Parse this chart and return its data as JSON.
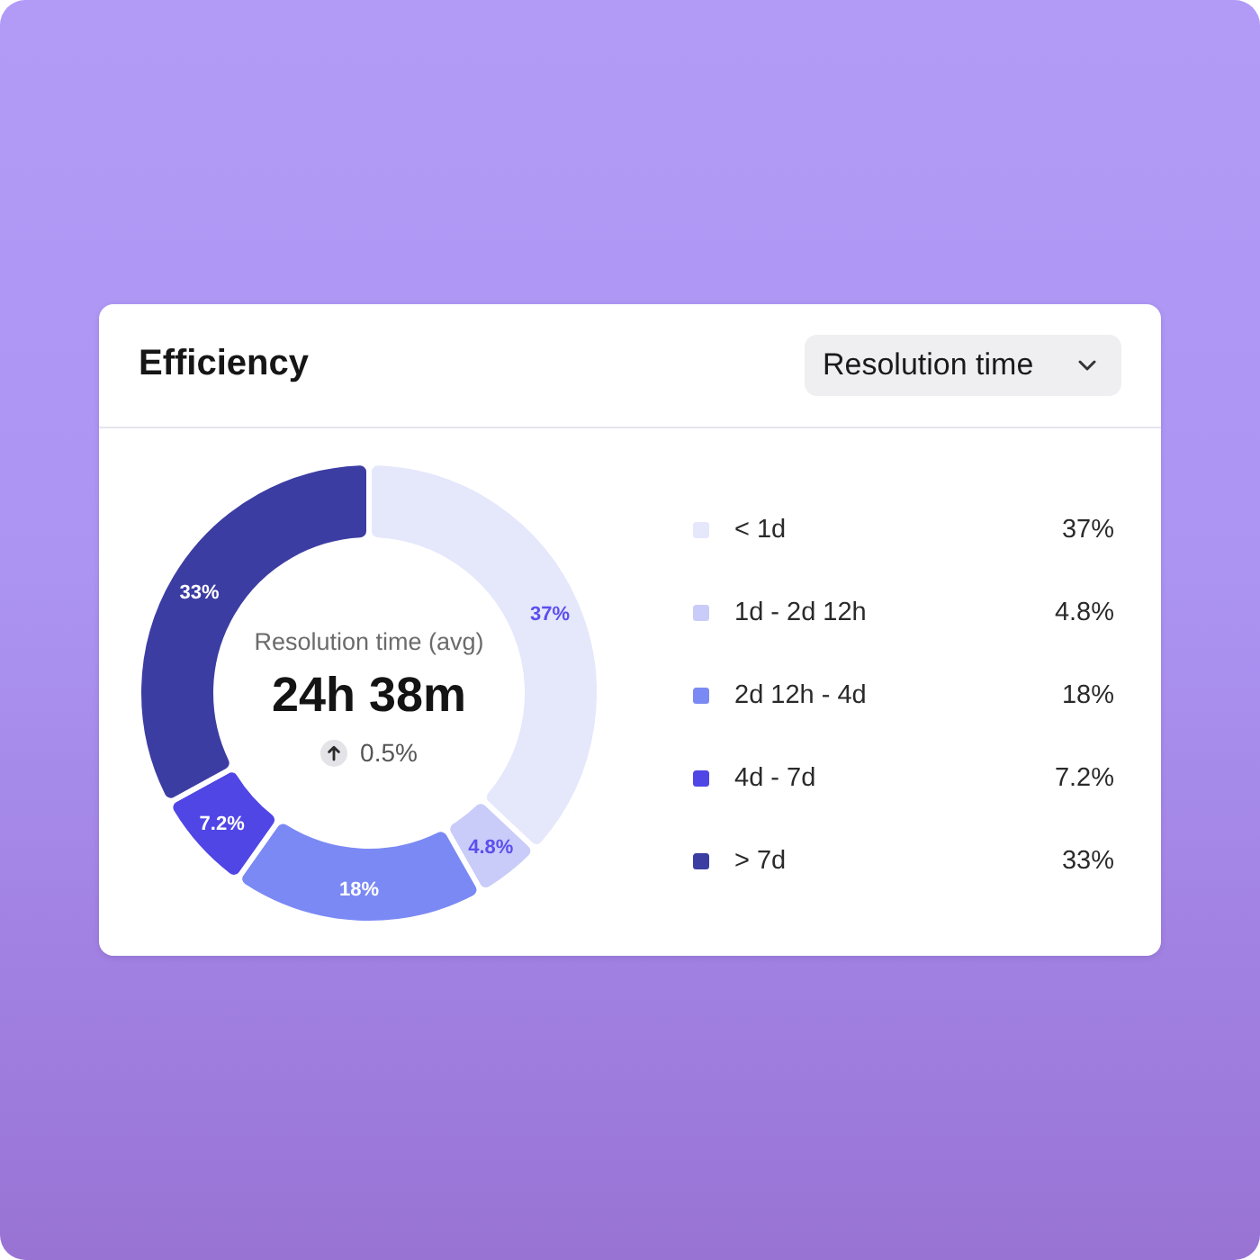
{
  "chart_data": {
    "type": "donut",
    "title": "Efficiency",
    "categories": [
      "< 1d",
      "1d - 2d 12h",
      "2d 12h - 4d",
      "4d - 7d",
      "> 7d"
    ],
    "values": [
      37,
      4.8,
      18,
      7.2,
      33
    ],
    "colors": [
      "#e5e7fb",
      "#c9ccf8",
      "#7b89f4",
      "#5046e5",
      "#3c3da3"
    ],
    "value_labels": [
      "37%",
      "4.8%",
      "18%",
      "7.2%",
      "33%"
    ],
    "legend": "right",
    "annotations": [
      "Resolution time",
      "Resolution time (avg)",
      "24h 38m",
      "0.5%"
    ]
  }
}
